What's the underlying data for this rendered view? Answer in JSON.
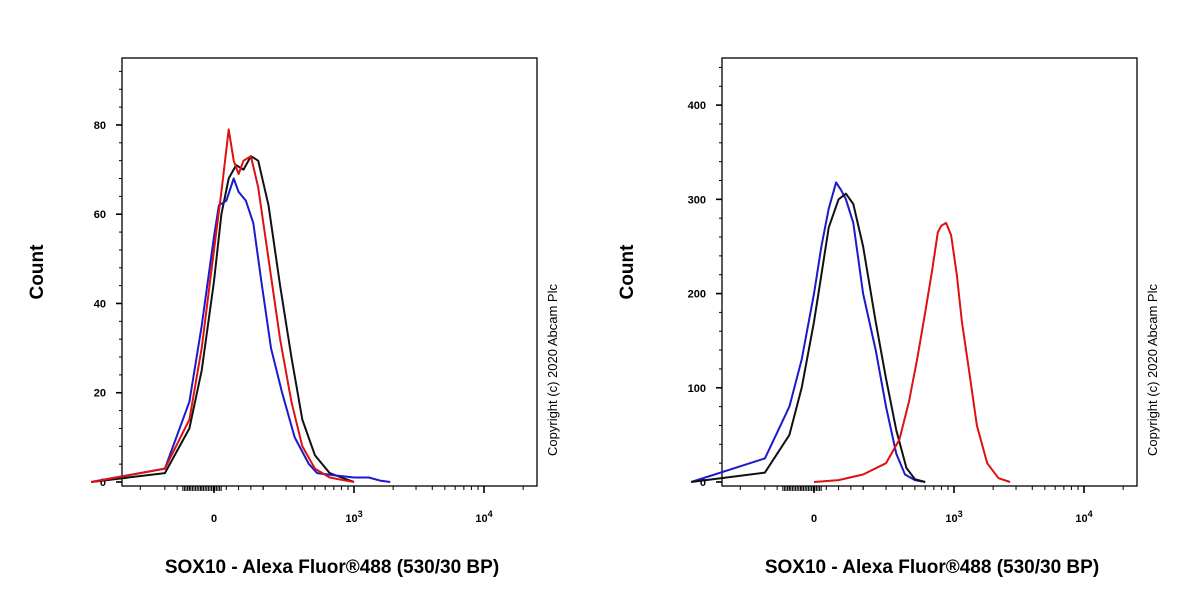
{
  "chart_data": [
    {
      "type": "line",
      "title": "",
      "xlabel": "SOX10 - Alexa Fluor®488 (530/30 BP)",
      "ylabel": "Count",
      "copyright": "Copyright (c) 2020 Abcam Plc",
      "x_scale": "biexponential",
      "x_ticks": [
        {
          "value": 0,
          "label": "0",
          "sup": ""
        },
        {
          "value": 1000,
          "label": "10",
          "sup": "3"
        },
        {
          "value": 10000,
          "label": "10",
          "sup": "4"
        }
      ],
      "ylim": [
        0,
        95
      ],
      "y_ticks": [
        0,
        20,
        40,
        60,
        80
      ],
      "series": [
        {
          "name": "black",
          "color": "#111111",
          "x": [
            -500,
            -200,
            -100,
            -50,
            0,
            30,
            60,
            90,
            120,
            150,
            180,
            220,
            270,
            330,
            400,
            500,
            650,
            800,
            1000
          ],
          "y": [
            0,
            2,
            12,
            25,
            45,
            60,
            68,
            71,
            70,
            73,
            72,
            62,
            44,
            28,
            14,
            6,
            2,
            1,
            0
          ]
        },
        {
          "name": "blue",
          "color": "#1a1acc",
          "x": [
            -500,
            -200,
            -100,
            -50,
            0,
            20,
            50,
            80,
            100,
            130,
            160,
            190,
            230,
            280,
            350,
            450,
            520,
            700,
            1000,
            1300,
            1600,
            1900
          ],
          "y": [
            0,
            3,
            18,
            35,
            55,
            62,
            63,
            68,
            65,
            63,
            58,
            46,
            30,
            20,
            10,
            4,
            2,
            1.5,
            1,
            1,
            0.3,
            0
          ]
        },
        {
          "name": "red",
          "color": "#dd1111",
          "x": [
            -500,
            -200,
            -100,
            -50,
            0,
            30,
            60,
            80,
            100,
            120,
            150,
            180,
            220,
            270,
            330,
            400,
            500,
            650,
            800,
            1000
          ],
          "y": [
            0,
            3,
            14,
            30,
            52,
            65,
            79,
            72,
            69,
            72,
            73,
            66,
            50,
            32,
            18,
            8,
            3,
            1,
            0.5,
            0
          ]
        }
      ]
    },
    {
      "type": "line",
      "title": "",
      "xlabel": "SOX10 - Alexa Fluor®488 (530/30 BP)",
      "ylabel": "Count",
      "copyright": "Copyright (c) 2020 Abcam Plc",
      "x_scale": "biexponential",
      "x_ticks": [
        {
          "value": 0,
          "label": "0",
          "sup": ""
        },
        {
          "value": 1000,
          "label": "10",
          "sup": "3"
        },
        {
          "value": 10000,
          "label": "10",
          "sup": "4"
        }
      ],
      "ylim": [
        0,
        450
      ],
      "y_ticks": [
        0,
        100,
        200,
        300,
        400
      ],
      "series": [
        {
          "name": "blue",
          "color": "#1a1acc",
          "x": [
            -500,
            -200,
            -100,
            -50,
            0,
            30,
            60,
            90,
            110,
            130,
            160,
            200,
            250,
            300,
            360,
            420,
            500,
            600
          ],
          "y": [
            0,
            25,
            80,
            130,
            200,
            250,
            290,
            318,
            310,
            300,
            275,
            200,
            140,
            80,
            30,
            8,
            2,
            0
          ]
        },
        {
          "name": "black",
          "color": "#111111",
          "x": [
            -500,
            -200,
            -100,
            -50,
            0,
            30,
            60,
            100,
            130,
            160,
            200,
            250,
            300,
            360,
            430,
            500,
            600
          ],
          "y": [
            0,
            10,
            50,
            100,
            170,
            220,
            270,
            300,
            306,
            295,
            250,
            170,
            110,
            55,
            15,
            3,
            0
          ]
        },
        {
          "name": "red",
          "color": "#dd1111",
          "x": [
            0,
            100,
            200,
            300,
            380,
            450,
            520,
            600,
            680,
            750,
            800,
            870,
            950,
            1050,
            1150,
            1300,
            1500,
            1800,
            2200,
            2700
          ],
          "y": [
            0,
            2,
            8,
            20,
            45,
            85,
            130,
            180,
            225,
            265,
            272,
            275,
            262,
            220,
            170,
            120,
            60,
            20,
            4,
            0
          ]
        }
      ]
    }
  ]
}
